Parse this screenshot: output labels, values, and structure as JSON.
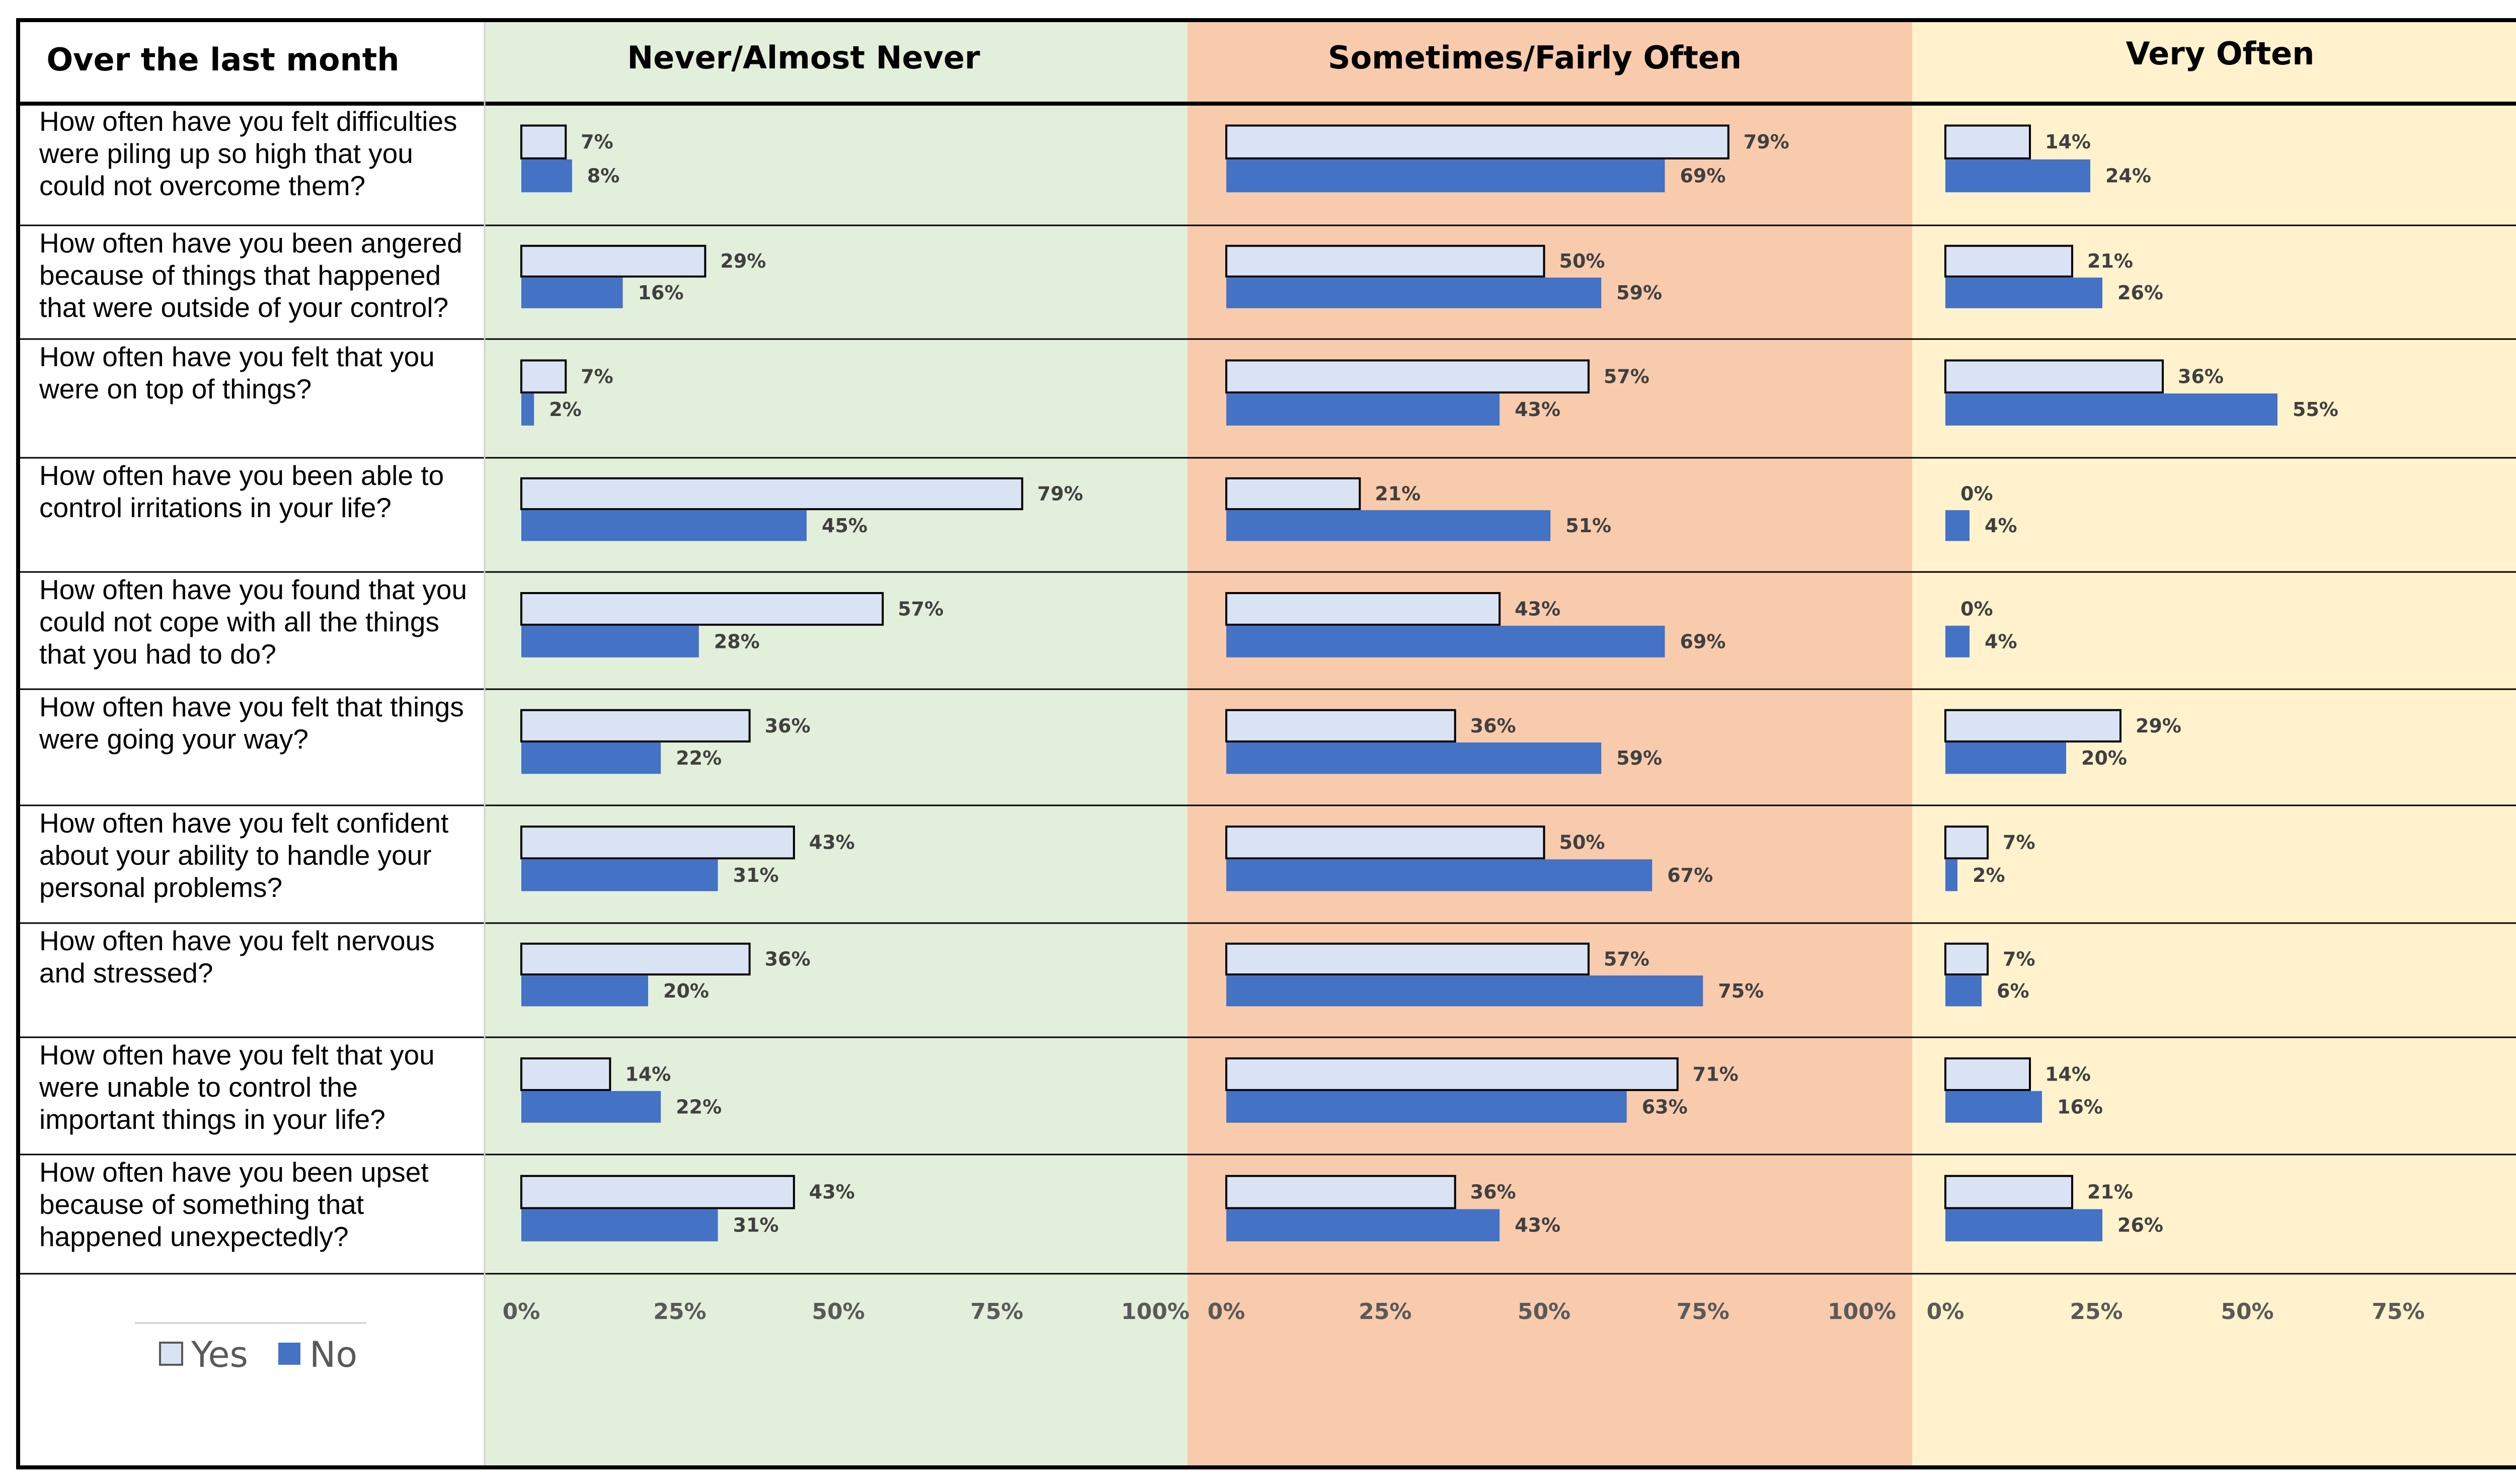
{
  "chart_data": {
    "type": "bar",
    "orientation": "horizontal",
    "header_label": "Over the last month",
    "panels": [
      {
        "title": "Never/Almost Never",
        "bg_color": "#e2efda"
      },
      {
        "title": "Sometimes/Fairly Often",
        "bg_color": "#f8cbad"
      },
      {
        "title": "Very Often",
        "bg_color": "#fff2cc"
      }
    ],
    "questions": [
      [
        "How often have you felt difficulties",
        "were piling up so high that you",
        "could not overcome them?"
      ],
      [
        "How often have you been angered",
        "because of things that happened",
        "that were outside of your control?"
      ],
      [
        "How often have you felt that you",
        "were on top of things?"
      ],
      [
        "How often have you been able to",
        "control irritations in your life?"
      ],
      [
        "How often have you found that you",
        "could not cope with all the things",
        "that you had to do?"
      ],
      [
        "How often have you felt that things",
        "were going your way?"
      ],
      [
        "How often have you felt confident",
        "about your ability to handle your",
        "personal problems?"
      ],
      [
        "How often have you felt nervous",
        "and stressed?"
      ],
      [
        "How often have you felt that you",
        "were unable to control the",
        "important things in your life?"
      ],
      [
        "How often have you been upset",
        "because of something that",
        "happened unexpectedly?"
      ]
    ],
    "series": [
      {
        "name": "Yes",
        "color": "#dae3f3",
        "values": [
          [
            7,
            79,
            14
          ],
          [
            29,
            50,
            21
          ],
          [
            7,
            57,
            36
          ],
          [
            79,
            21,
            0
          ],
          [
            57,
            43,
            0
          ],
          [
            36,
            36,
            29
          ],
          [
            43,
            50,
            7
          ],
          [
            36,
            57,
            7
          ],
          [
            14,
            71,
            14
          ],
          [
            43,
            36,
            21
          ]
        ]
      },
      {
        "name": "No",
        "color": "#4472c4",
        "values": [
          [
            8,
            69,
            24
          ],
          [
            16,
            59,
            26
          ],
          [
            2,
            43,
            55
          ],
          [
            45,
            51,
            4
          ],
          [
            28,
            69,
            4
          ],
          [
            22,
            59,
            20
          ],
          [
            31,
            67,
            2
          ],
          [
            20,
            75,
            6
          ],
          [
            22,
            63,
            16
          ],
          [
            31,
            43,
            26
          ]
        ]
      }
    ],
    "value_suffix": "%",
    "xlim": [
      0,
      100
    ],
    "x_ticks": [
      "0%",
      "25%",
      "50%",
      "75%",
      "100%"
    ],
    "legend_position": "bottom-left"
  }
}
